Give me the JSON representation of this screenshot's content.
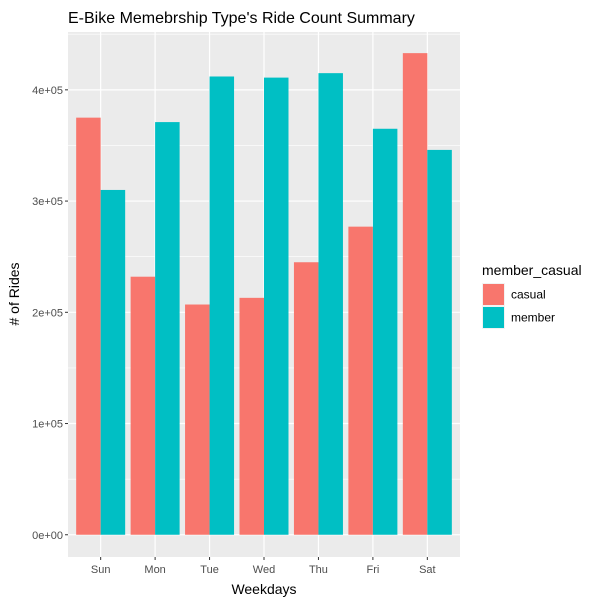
{
  "chart_data": {
    "type": "bar",
    "title": "E-Bike Memebrship Type's Ride Count Summary",
    "xlabel": "Weekdays",
    "ylabel": "# of Rides",
    "categories": [
      "Sun",
      "Mon",
      "Tue",
      "Wed",
      "Thu",
      "Fri",
      "Sat"
    ],
    "series": [
      {
        "name": "casual",
        "color": "#F8766D",
        "values": [
          375000,
          232000,
          207000,
          213000,
          245000,
          277000,
          433000
        ]
      },
      {
        "name": "member",
        "color": "#00BFC4",
        "values": [
          310000,
          371000,
          412000,
          411000,
          415000,
          365000,
          346000
        ]
      }
    ],
    "ylim": [
      0,
      450000
    ],
    "yticks": [
      0,
      100000,
      200000,
      300000,
      400000
    ],
    "ytick_labels": [
      "0e+00",
      "1e+05",
      "2e+05",
      "3e+05",
      "4e+05"
    ],
    "legend": {
      "title": "member_casual",
      "position": "right"
    },
    "grid": true,
    "panel_background": "#EBEBEB",
    "grid_color": "#FFFFFF"
  }
}
